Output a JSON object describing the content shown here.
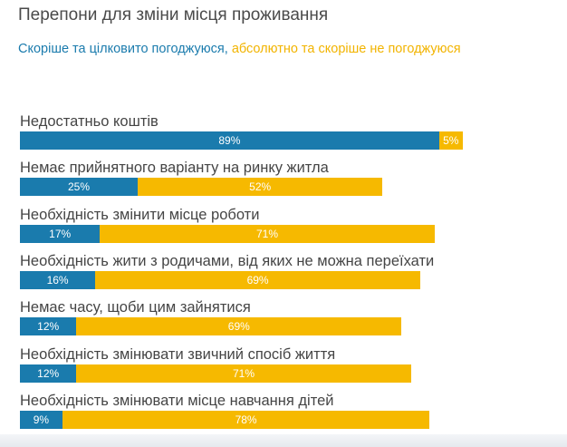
{
  "title": "Перепони для зміни місця проживання",
  "legend": {
    "agree": "Скоріше та цілковито погоджуюся,",
    "disagree": "абсолютно та скоріше не погоджуюся"
  },
  "colors": {
    "agree": "#1a7bad",
    "disagree": "#f6b900"
  },
  "chart_data": {
    "type": "bar",
    "orientation": "horizontal",
    "stacked": true,
    "title": "Перепони для зміни місця проживання",
    "categories": [
      "Недостатньо коштів",
      "Немає прийнятного варіанту на ринку житла",
      "Необхідність змінити місце роботи",
      "Необхідність жити з родичами, від яких не можна переїхати",
      "Немає часу, щоби цим зайнятися",
      "Необхідність змінювати звичний спосіб життя",
      "Необхідність змінювати місце навчання дітей"
    ],
    "series": [
      {
        "name": "Скоріше та цілковито погоджуюся",
        "values": [
          89,
          25,
          17,
          16,
          12,
          12,
          9
        ],
        "labels": [
          "89%",
          "25%",
          "17%",
          "16%",
          "12%",
          "12%",
          "9%"
        ]
      },
      {
        "name": "абсолютно та скоріше не погоджуюся",
        "values": [
          5,
          52,
          71,
          69,
          69,
          71,
          78
        ],
        "labels": [
          "5%",
          "52%",
          "71%",
          "69%",
          "69%",
          "71%",
          "78%"
        ]
      }
    ],
    "xlim": [
      0,
      100
    ]
  }
}
